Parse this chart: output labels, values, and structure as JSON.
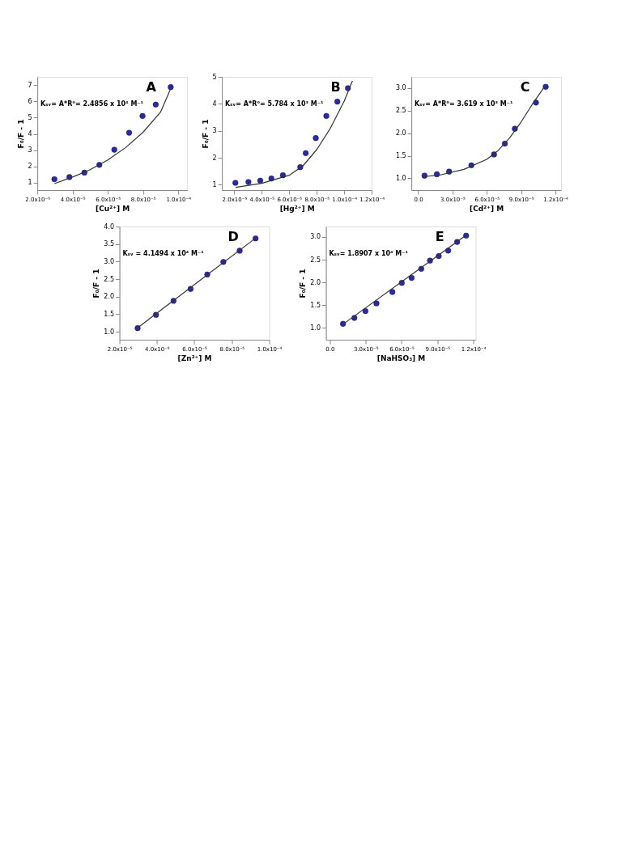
{
  "chart_data": [
    {
      "type": "scatter",
      "xlabel": "[Cu²⁺] M",
      "ylabel": "F₀/F - 1",
      "marker": "circle",
      "annotations": [
        "A",
        "Kₛᵥ= A*R⁰= 2.4856 x 10⁴ M⁻¹"
      ],
      "xlim": [
        2e-05,
        0.000105
      ],
      "xticks": [
        {
          "value": 2e-05,
          "label": "2.0x10⁻⁵"
        },
        {
          "value": 4e-05,
          "label": "4.0x10⁻⁵"
        },
        {
          "value": 6e-05,
          "label": "6.0x10⁻⁵"
        },
        {
          "value": 8e-05,
          "label": "8.0x10⁻⁵"
        },
        {
          "value": 0.0001,
          "label": "1.0x10⁻⁴"
        }
      ],
      "ylim": [
        0.55,
        7.5
      ],
      "yticks": [
        1,
        2,
        3,
        4,
        5,
        6,
        7
      ],
      "series": [
        {
          "color": "#2b2ba0",
          "x": [
            2.97e-05,
            3.82e-05,
            4.67e-05,
            5.52e-05,
            6.37e-05,
            7.21e-05,
            7.97e-05,
            8.72e-05,
            9.57e-05
          ],
          "values": [
            1.22,
            1.35,
            1.62,
            2.1,
            3.03,
            4.07,
            5.1,
            5.8,
            6.87
          ]
        },
        {
          "type": "line",
          "marker": "none",
          "line_style": "solid",
          "color": "#333333",
          "x": [
            2.97e-05,
            4e-05,
            5e-05,
            6e-05,
            7e-05,
            8e-05,
            9e-05,
            9.6e-05
          ],
          "values": [
            0.95,
            1.35,
            1.8,
            2.4,
            3.15,
            4.1,
            5.35,
            6.85
          ]
        }
      ]
    },
    {
      "type": "scatter",
      "xlabel": "[Hg²⁺] M",
      "ylabel": "F₀/F - 1",
      "marker": "circle",
      "annotations": [
        "B",
        "Kₛᵥ= A*R⁰= 5.784 x 10³ M⁻¹"
      ],
      "xlim": [
        1.1e-05,
        0.00012
      ],
      "xticks": [
        {
          "value": 2e-05,
          "label": "2.0x10⁻⁵"
        },
        {
          "value": 4e-05,
          "label": "4.0x10⁻⁵"
        },
        {
          "value": 6e-05,
          "label": "6.0x10⁻⁵"
        },
        {
          "value": 8e-05,
          "label": "8.0x10⁻⁵"
        },
        {
          "value": 0.0001,
          "label": "1.0x10⁻⁴"
        },
        {
          "value": 0.00012,
          "label": "1.2x10⁻⁴"
        }
      ],
      "ylim": [
        0.8,
        5
      ],
      "yticks": [
        1,
        2,
        3,
        4,
        5
      ],
      "series": [
        {
          "color": "#2b2ba0",
          "x": [
            2.08e-05,
            3.03e-05,
            3.89e-05,
            4.7e-05,
            5.54e-05,
            6.8e-05,
            7.2e-05,
            7.93e-05,
            8.7e-05,
            9.5e-05,
            0.0001027
          ],
          "values": [
            1.07,
            1.1,
            1.15,
            1.23,
            1.35,
            1.65,
            2.17,
            2.73,
            3.55,
            4.08,
            4.58
          ]
        },
        {
          "type": "line",
          "marker": "none",
          "line_style": "solid",
          "color": "#333333",
          "x": [
            2.1e-05,
            4e-05,
            6e-05,
            7e-05,
            8e-05,
            9e-05,
            0.0001,
            0.000106
          ],
          "values": [
            0.9,
            1.05,
            1.35,
            1.7,
            2.3,
            3.1,
            4.1,
            4.85
          ]
        }
      ]
    },
    {
      "type": "scatter",
      "xlabel": "[Cd²⁺] M",
      "marker": "circle",
      "annotations": [
        "C",
        "Kₛᵥ= A*R⁰= 3.619 x 10³ M⁻¹"
      ],
      "xlim": [
        -6e-06,
        0.000125
      ],
      "xticks": [
        {
          "value": 0,
          "label": "0.0"
        },
        {
          "value": 3e-05,
          "label": "3.0x10⁻⁵"
        },
        {
          "value": 6e-05,
          "label": "6.0x10⁻⁵"
        },
        {
          "value": 9e-05,
          "label": "9.0x10⁻⁵"
        },
        {
          "value": 0.00012,
          "label": "1.2x10⁻⁴"
        }
      ],
      "ylim": [
        0.74,
        3.25
      ],
      "yticks": [
        {
          "value": 1.0,
          "label": "1.0"
        },
        1.5,
        {
          "value": 2.0,
          "label": "2.0"
        },
        2.5,
        {
          "value": 3.0,
          "label": "3.0"
        }
      ],
      "series": [
        {
          "color": "#2b2ba0",
          "x": [
            5.5e-06,
            1.63e-05,
            2.7e-05,
            4.65e-05,
            6.63e-05,
            7.58e-05,
            8.45e-05,
            0.000103,
            0.0001115
          ],
          "values": [
            1.06,
            1.09,
            1.15,
            1.29,
            1.53,
            1.77,
            2.1,
            2.68,
            3.03
          ]
        },
        {
          "type": "line",
          "marker": "none",
          "line_style": "solid",
          "color": "#333333",
          "x": [
            5.5e-06,
            2e-05,
            4e-05,
            6e-05,
            7e-05,
            8e-05,
            9e-05,
            0.0001,
            0.000111
          ],
          "values": [
            1.04,
            1.08,
            1.2,
            1.42,
            1.62,
            1.9,
            2.25,
            2.65,
            3.05
          ]
        }
      ]
    },
    {
      "type": "scatter",
      "xlabel": "[Zn²⁺] M",
      "ylabel": "F₀/F - 1",
      "marker": "circle",
      "annotations": [
        "D",
        "Kₛᵥ = 4.1494 x 10⁴ M⁻¹"
      ],
      "xlim": [
        2e-05,
        0.0001
      ],
      "xticks": [
        {
          "value": 2e-05,
          "label": "2.0x10⁻⁵"
        },
        {
          "value": 4e-05,
          "label": "4.0x10⁻⁵"
        },
        {
          "value": 6e-05,
          "label": "6.0x10⁻⁵"
        },
        {
          "value": 8e-05,
          "label": "8.0x10⁻⁵"
        },
        {
          "value": 0.0001,
          "label": "1.0x10⁻⁴"
        }
      ],
      "ylim": [
        0.77,
        4.0
      ],
      "yticks": [
        {
          "value": 1.0,
          "label": "1.0"
        },
        1.5,
        {
          "value": 2.0,
          "label": "2.0"
        },
        2.5,
        {
          "value": 3.0,
          "label": "3.0"
        },
        3.5,
        {
          "value": 4.0,
          "label": "4.0"
        }
      ],
      "series": [
        {
          "color": "#2b2ba0",
          "x": [
            2.97e-05,
            3.95e-05,
            4.89e-05,
            5.8e-05,
            6.69e-05,
            7.55e-05,
            8.42e-05,
            9.27e-05
          ],
          "values": [
            1.1,
            1.48,
            1.88,
            2.22,
            2.63,
            2.99,
            3.31,
            3.66
          ]
        },
        {
          "type": "line",
          "marker": "none",
          "line_style": "solid",
          "color": "#333333",
          "x": [
            2.9e-05,
            9.3e-05
          ],
          "values": [
            1.08,
            3.68
          ]
        }
      ]
    },
    {
      "type": "scatter",
      "xlabel": "[NaHSO₃] M",
      "ylabel": "F₀/F - 1",
      "marker": "circle",
      "annotations": [
        "E",
        "Kₛᵥ= 1.8907 x 10⁴ M⁻¹"
      ],
      "xlim": [
        -3.3e-06,
        0.000122
      ],
      "xticks": [
        {
          "value": 0,
          "label": "0.0"
        },
        {
          "value": 3e-05,
          "label": "3.0x10⁻⁵"
        },
        {
          "value": 6e-05,
          "label": "6.0x10⁻⁵"
        },
        {
          "value": 9e-05,
          "label": "9.0x10⁻⁵"
        },
        {
          "value": 0.00012,
          "label": "1.2x10⁻⁴"
        }
      ],
      "ylim": [
        0.74,
        3.23
      ],
      "yticks": [
        {
          "value": 1.0,
          "label": "1.0"
        },
        1.5,
        {
          "value": 2.0,
          "label": "2.0"
        },
        2.5,
        {
          "value": 3.0,
          "label": "3.0"
        }
      ],
      "series": [
        {
          "color": "#2b2ba0",
          "x": [
            1.1e-05,
            2.05e-05,
            2.98e-05,
            3.9e-05,
            5.23e-05,
            6.02e-05,
            6.84e-05,
            7.65e-05,
            8.38e-05,
            9.11e-05,
            9.9e-05,
            0.0001065,
            0.000114
          ],
          "values": [
            1.09,
            1.22,
            1.37,
            1.54,
            1.79,
            1.99,
            2.1,
            2.3,
            2.48,
            2.58,
            2.7,
            2.89,
            3.03
          ]
        },
        {
          "type": "line",
          "marker": "none",
          "line_style": "solid",
          "color": "#333333",
          "x": [
            1.1e-05,
            0.000114
          ],
          "values": [
            1.08,
            3.04
          ]
        }
      ]
    }
  ]
}
